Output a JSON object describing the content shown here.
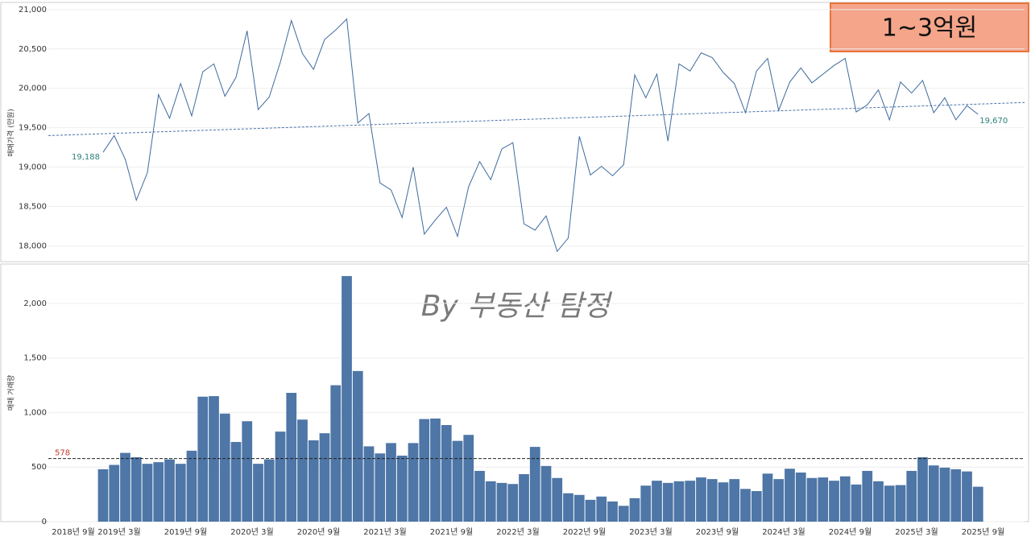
{
  "badge": "1~3억원",
  "watermark": "By 부동산 탐정",
  "chart_data": [
    {
      "type": "line",
      "y_label": "매매가격 (만원)",
      "categories": [
        "2018년 9월",
        null,
        null,
        null,
        null,
        null,
        "2019년 3월",
        null,
        null,
        null,
        null,
        null,
        "2019년 9월",
        null,
        null,
        null,
        null,
        null,
        "2020년 3월",
        null,
        null,
        null,
        null,
        null,
        "2020년 9월",
        null,
        null,
        null,
        null,
        null,
        "2021년 3월",
        null,
        null,
        null,
        null,
        null,
        "2021년 9월",
        null,
        null,
        null,
        null,
        null,
        "2022년 3월",
        null,
        null,
        null,
        null,
        null,
        "2022년 9월",
        null,
        null,
        null,
        null,
        null,
        "2023년 3월",
        null,
        null,
        null,
        null,
        null,
        "2023년 9월",
        null,
        null,
        null,
        null,
        null,
        "2024년 3월",
        null,
        null,
        null,
        null,
        null,
        "2024년 9월",
        null,
        null,
        null,
        null,
        null,
        "2025년 3월",
        null,
        null,
        null,
        null,
        null,
        "2025년 9월",
        null
      ],
      "values": [
        null,
        null,
        null,
        null,
        null,
        null,
        19188,
        19400,
        19100,
        18580,
        18930,
        19920,
        19620,
        20060,
        19650,
        20210,
        20310,
        19900,
        20140,
        20730,
        19730,
        19890,
        20330,
        20860,
        20440,
        20240,
        20620,
        20740,
        20880,
        19560,
        19680,
        18800,
        18710,
        18360,
        19000,
        18150,
        18330,
        18490,
        18120,
        18750,
        19070,
        18840,
        19230,
        19310,
        18280,
        18200,
        18380,
        17930,
        18100,
        19390,
        18900,
        19010,
        18890,
        19030,
        20170,
        19880,
        20180,
        19330,
        20310,
        20220,
        20450,
        20390,
        20200,
        20060,
        19690,
        20220,
        20380,
        19720,
        20080,
        20260,
        20070,
        20180,
        20290,
        20380,
        19700,
        19790,
        19980,
        19600,
        20080,
        19940,
        20100,
        19690,
        19880,
        19600,
        19780,
        19670
      ],
      "value_labels": [
        null,
        null,
        null,
        null,
        null,
        null,
        "19,188",
        null,
        null,
        null,
        null,
        null,
        null,
        null,
        null,
        null,
        null,
        null,
        null,
        null,
        null,
        null,
        null,
        null,
        null,
        null,
        null,
        null,
        null,
        null,
        null,
        null,
        null,
        null,
        null,
        null,
        null,
        null,
        null,
        null,
        null,
        null,
        null,
        null,
        null,
        null,
        null,
        null,
        null,
        null,
        null,
        null,
        null,
        null,
        null,
        null,
        null,
        null,
        null,
        null,
        null,
        null,
        null,
        null,
        null,
        null,
        null,
        null,
        null,
        null,
        null,
        null,
        null,
        null,
        null,
        null,
        null,
        null,
        null,
        null,
        null,
        null,
        null,
        null,
        null,
        "19,670"
      ],
      "color": "#3d6a9e",
      "trendline": [
        19400,
        19820
      ],
      "trend_color": "#4a72a8",
      "ylim": [
        17800,
        21070
      ],
      "yticks": [
        {
          "value": 18000,
          "label": "18,000"
        },
        {
          "value": 18500,
          "label": "18,500"
        },
        {
          "value": 19000,
          "label": "19,000"
        },
        {
          "value": 19500,
          "label": "19,500"
        },
        {
          "value": 20000,
          "label": "20,000"
        },
        {
          "value": 20500,
          "label": "20,500"
        },
        {
          "value": 21000,
          "label": "21,000"
        }
      ],
      "grid": true
    },
    {
      "type": "bar",
      "y_label": "매매 거래량",
      "categories": [
        "2018년 9월",
        null,
        null,
        null,
        null,
        null,
        "2019년 3월",
        null,
        null,
        null,
        null,
        null,
        "2019년 9월",
        null,
        null,
        null,
        null,
        null,
        "2020년 3월",
        null,
        null,
        null,
        null,
        null,
        "2020년 9월",
        null,
        null,
        null,
        null,
        null,
        "2021년 3월",
        null,
        null,
        null,
        null,
        null,
        "2021년 9월",
        null,
        null,
        null,
        null,
        null,
        "2022년 3월",
        null,
        null,
        null,
        null,
        null,
        "2022년 9월",
        null,
        null,
        null,
        null,
        null,
        "2023년 3월",
        null,
        null,
        null,
        null,
        null,
        "2023년 9월",
        null,
        null,
        null,
        null,
        null,
        "2024년 3월",
        null,
        null,
        null,
        null,
        null,
        "2024년 9월",
        null,
        null,
        null,
        null,
        null,
        "2025년 3월",
        null,
        null,
        null,
        null,
        null,
        "2025년 9월",
        null
      ],
      "values": [
        null,
        null,
        null,
        null,
        null,
        null,
        480,
        520,
        630,
        590,
        530,
        545,
        570,
        530,
        650,
        1145,
        1150,
        990,
        730,
        920,
        530,
        570,
        825,
        1180,
        935,
        745,
        810,
        1250,
        2250,
        1380,
        690,
        625,
        720,
        605,
        720,
        940,
        945,
        885,
        740,
        795,
        465,
        370,
        355,
        345,
        435,
        685,
        510,
        400,
        260,
        245,
        200,
        230,
        185,
        145,
        215,
        330,
        375,
        355,
        370,
        375,
        405,
        390,
        360,
        390,
        300,
        280,
        440,
        390,
        485,
        450,
        400,
        405,
        375,
        415,
        340,
        465,
        370,
        330,
        335,
        465,
        590,
        515,
        495,
        480,
        460,
        320
      ],
      "color": "#4e76a6",
      "reference_line": {
        "value": 578,
        "label": "578"
      },
      "ylim": [
        0,
        2360
      ],
      "yticks": [
        0,
        500,
        {
          "value": 1000,
          "label": "1,000"
        },
        {
          "value": 1500,
          "label": "1,500"
        },
        {
          "value": 2000,
          "label": "2,000"
        }
      ],
      "grid": true
    }
  ]
}
